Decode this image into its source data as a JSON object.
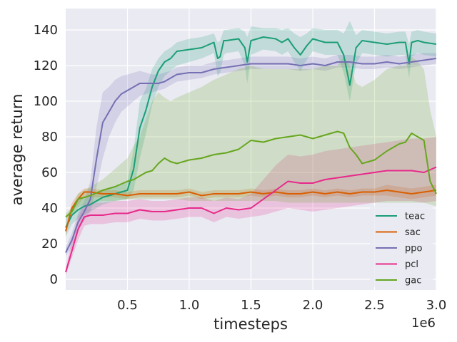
{
  "chart_data": {
    "type": "line",
    "xlabel": "timesteps",
    "ylabel": "average return",
    "x_offset_label": "1e6",
    "xlim": [
      0.0,
      3.0
    ],
    "ylim": [
      -6,
      152
    ],
    "xticks": [
      0.5,
      1.0,
      1.5,
      2.0,
      2.5,
      3.0
    ],
    "xtick_labels": [
      "0.5",
      "1.0",
      "1.5",
      "2.0",
      "2.5",
      "3.0"
    ],
    "yticks": [
      0,
      20,
      40,
      60,
      80,
      100,
      120,
      140
    ],
    "ytick_labels": [
      "0",
      "20",
      "40",
      "60",
      "80",
      "100",
      "120",
      "140"
    ],
    "grid": true,
    "background": "#eaeaf2",
    "legend_position": "lower-right",
    "x_scale": "timesteps x 1e6",
    "series": [
      {
        "name": "teac",
        "color": "#1b9e77",
        "x": [
          0.0,
          0.05,
          0.1,
          0.15,
          0.2,
          0.3,
          0.4,
          0.5,
          0.55,
          0.6,
          0.65,
          0.7,
          0.75,
          0.8,
          0.85,
          0.9,
          1.0,
          1.1,
          1.2,
          1.23,
          1.25,
          1.28,
          1.3,
          1.4,
          1.45,
          1.47,
          1.5,
          1.6,
          1.7,
          1.75,
          1.8,
          1.85,
          1.9,
          1.95,
          2.0,
          2.1,
          2.2,
          2.25,
          2.3,
          2.35,
          2.4,
          2.5,
          2.6,
          2.7,
          2.75,
          2.78,
          2.8,
          2.85,
          2.9,
          3.0
        ],
        "y": [
          29,
          36,
          39,
          41,
          42,
          46,
          48,
          50,
          62,
          85,
          95,
          108,
          117,
          122,
          124,
          128,
          129,
          130,
          133,
          124,
          125,
          134,
          134,
          135,
          130,
          122,
          134,
          136,
          135,
          133,
          135,
          130,
          126,
          131,
          135,
          133,
          133,
          126,
          109,
          130,
          134,
          133,
          132,
          133,
          133,
          121,
          133,
          134,
          133,
          132
        ],
        "band_low": [
          24,
          31,
          34,
          36,
          38,
          42,
          44,
          45,
          50,
          68,
          82,
          98,
          108,
          114,
          117,
          120,
          122,
          124,
          127,
          114,
          116,
          126,
          127,
          128,
          120,
          110,
          126,
          129,
          128,
          126,
          128,
          122,
          117,
          123,
          128,
          126,
          126,
          116,
          100,
          121,
          127,
          126,
          125,
          126,
          126,
          113,
          125,
          127,
          126,
          125
        ],
        "band_high": [
          34,
          41,
          44,
          46,
          46,
          50,
          52,
          55,
          73,
          100,
          107,
          118,
          124,
          128,
          130,
          133,
          135,
          136,
          138,
          133,
          134,
          140,
          140,
          141,
          139,
          136,
          142,
          141,
          141,
          140,
          141,
          138,
          136,
          138,
          141,
          140,
          140,
          138,
          145,
          137,
          140,
          139,
          138,
          139,
          139,
          132,
          139,
          140,
          139,
          138
        ]
      },
      {
        "name": "sac",
        "color": "#d95f02",
        "x": [
          0.0,
          0.05,
          0.1,
          0.15,
          0.2,
          0.3,
          0.4,
          0.5,
          0.6,
          0.7,
          0.8,
          0.9,
          1.0,
          1.1,
          1.2,
          1.3,
          1.4,
          1.5,
          1.6,
          1.7,
          1.8,
          1.9,
          2.0,
          2.1,
          2.2,
          2.3,
          2.4,
          2.5,
          2.6,
          2.7,
          2.8,
          2.9,
          3.0
        ],
        "y": [
          27,
          40,
          45,
          49,
          49,
          48,
          48,
          47,
          48,
          48,
          48,
          48,
          49,
          47,
          48,
          48,
          48,
          49,
          48,
          49,
          48,
          48,
          49,
          48,
          49,
          48,
          49,
          49,
          50,
          49,
          48,
          49,
          50
        ],
        "band_low": [
          24,
          37,
          42,
          46,
          46,
          46,
          46,
          45,
          46,
          46,
          46,
          46,
          47,
          45,
          46,
          46,
          46,
          47,
          46,
          47,
          46,
          46,
          47,
          46,
          47,
          46,
          47,
          47,
          47,
          46,
          45,
          46,
          47
        ],
        "band_high": [
          30,
          43,
          48,
          51,
          51,
          50,
          50,
          49,
          50,
          50,
          50,
          50,
          51,
          49,
          50,
          50,
          50,
          51,
          50,
          51,
          50,
          50,
          51,
          50,
          51,
          50,
          51,
          51,
          53,
          52,
          51,
          52,
          53
        ]
      },
      {
        "name": "ppo",
        "color": "#7570b3",
        "x": [
          0.0,
          0.05,
          0.1,
          0.15,
          0.2,
          0.25,
          0.3,
          0.35,
          0.4,
          0.45,
          0.5,
          0.55,
          0.6,
          0.65,
          0.7,
          0.75,
          0.8,
          0.85,
          0.9,
          1.0,
          1.1,
          1.2,
          1.3,
          1.4,
          1.5,
          1.6,
          1.7,
          1.8,
          1.9,
          2.0,
          2.1,
          2.2,
          2.3,
          2.4,
          2.5,
          2.6,
          2.7,
          2.8,
          2.9,
          3.0
        ],
        "y": [
          15,
          22,
          32,
          38,
          45,
          68,
          88,
          94,
          100,
          104,
          106,
          108,
          110,
          110,
          110,
          110,
          111,
          113,
          115,
          116,
          116,
          118,
          119,
          120,
          121,
          121,
          121,
          121,
          120,
          121,
          120,
          122,
          122,
          121,
          121,
          122,
          121,
          122,
          123,
          124
        ],
        "band_low": [
          13,
          18,
          28,
          33,
          38,
          52,
          68,
          80,
          88,
          94,
          97,
          100,
          103,
          104,
          105,
          106,
          107,
          109,
          111,
          112,
          113,
          115,
          116,
          117,
          118,
          118,
          118,
          118,
          117,
          118,
          117,
          119,
          119,
          118,
          118,
          119,
          118,
          119,
          120,
          121
        ],
        "band_high": [
          18,
          26,
          37,
          44,
          55,
          86,
          105,
          108,
          112,
          114,
          115,
          116,
          117,
          116,
          115,
          115,
          116,
          117,
          119,
          120,
          120,
          122,
          123,
          124,
          125,
          125,
          125,
          125,
          124,
          125,
          124,
          126,
          126,
          125,
          125,
          126,
          125,
          126,
          127,
          127
        ]
      },
      {
        "name": "pcl",
        "color": "#e7298a",
        "x": [
          0.0,
          0.05,
          0.1,
          0.15,
          0.2,
          0.3,
          0.4,
          0.5,
          0.6,
          0.7,
          0.8,
          0.9,
          1.0,
          1.1,
          1.2,
          1.3,
          1.4,
          1.5,
          1.6,
          1.7,
          1.8,
          1.9,
          2.0,
          2.1,
          2.2,
          2.3,
          2.4,
          2.5,
          2.6,
          2.7,
          2.8,
          2.9,
          3.0
        ],
        "y": [
          4,
          16,
          28,
          35,
          36,
          36,
          37,
          37,
          39,
          38,
          38,
          39,
          40,
          40,
          37,
          40,
          39,
          40,
          45,
          50,
          55,
          54,
          54,
          56,
          57,
          58,
          59,
          60,
          61,
          61,
          61,
          60,
          63
        ],
        "band_low": [
          2,
          12,
          22,
          30,
          31,
          31,
          32,
          32,
          34,
          33,
          33,
          34,
          35,
          35,
          32,
          35,
          34,
          35,
          36,
          38,
          40,
          39,
          38,
          39,
          40,
          41,
          42,
          43,
          44,
          44,
          44,
          43,
          44
        ],
        "band_high": [
          6,
          22,
          35,
          42,
          43,
          43,
          44,
          44,
          45,
          44,
          44,
          45,
          46,
          46,
          44,
          46,
          45,
          48,
          56,
          64,
          70,
          69,
          70,
          72,
          73,
          74,
          75,
          76,
          77,
          78,
          79,
          79,
          80
        ]
      },
      {
        "name": "gac",
        "color": "#66a61e",
        "x": [
          0.0,
          0.05,
          0.1,
          0.15,
          0.2,
          0.3,
          0.4,
          0.5,
          0.55,
          0.6,
          0.65,
          0.7,
          0.75,
          0.8,
          0.85,
          0.9,
          1.0,
          1.1,
          1.2,
          1.3,
          1.4,
          1.5,
          1.6,
          1.7,
          1.8,
          1.9,
          2.0,
          2.1,
          2.2,
          2.25,
          2.3,
          2.35,
          2.4,
          2.45,
          2.5,
          2.6,
          2.7,
          2.75,
          2.8,
          2.85,
          2.9,
          2.95,
          3.0
        ],
        "y": [
          35,
          38,
          45,
          46,
          47,
          50,
          52,
          55,
          56,
          58,
          60,
          61,
          65,
          68,
          66,
          65,
          67,
          68,
          70,
          71,
          73,
          78,
          77,
          79,
          80,
          81,
          79,
          81,
          83,
          82,
          74,
          70,
          65,
          66,
          67,
          72,
          76,
          77,
          82,
          80,
          78,
          55,
          48
        ],
        "band_low": [
          34,
          36,
          40,
          42,
          43,
          44,
          44,
          45,
          45,
          45,
          45,
          45,
          45,
          45,
          45,
          45,
          44,
          44,
          44,
          44,
          44,
          44,
          44,
          44,
          43,
          43,
          43,
          43,
          43,
          43,
          43,
          43,
          43,
          43,
          43,
          43,
          43,
          43,
          43,
          43,
          43,
          42,
          41
        ],
        "band_high": [
          37,
          40,
          48,
          50,
          52,
          56,
          62,
          68,
          75,
          80,
          90,
          100,
          105,
          102,
          100,
          102,
          105,
          108,
          112,
          115,
          118,
          120,
          118,
          118,
          118,
          118,
          118,
          120,
          120,
          125,
          120,
          110,
          108,
          110,
          112,
          118,
          120,
          120,
          125,
          122,
          118,
          95,
          80
        ]
      }
    ]
  }
}
